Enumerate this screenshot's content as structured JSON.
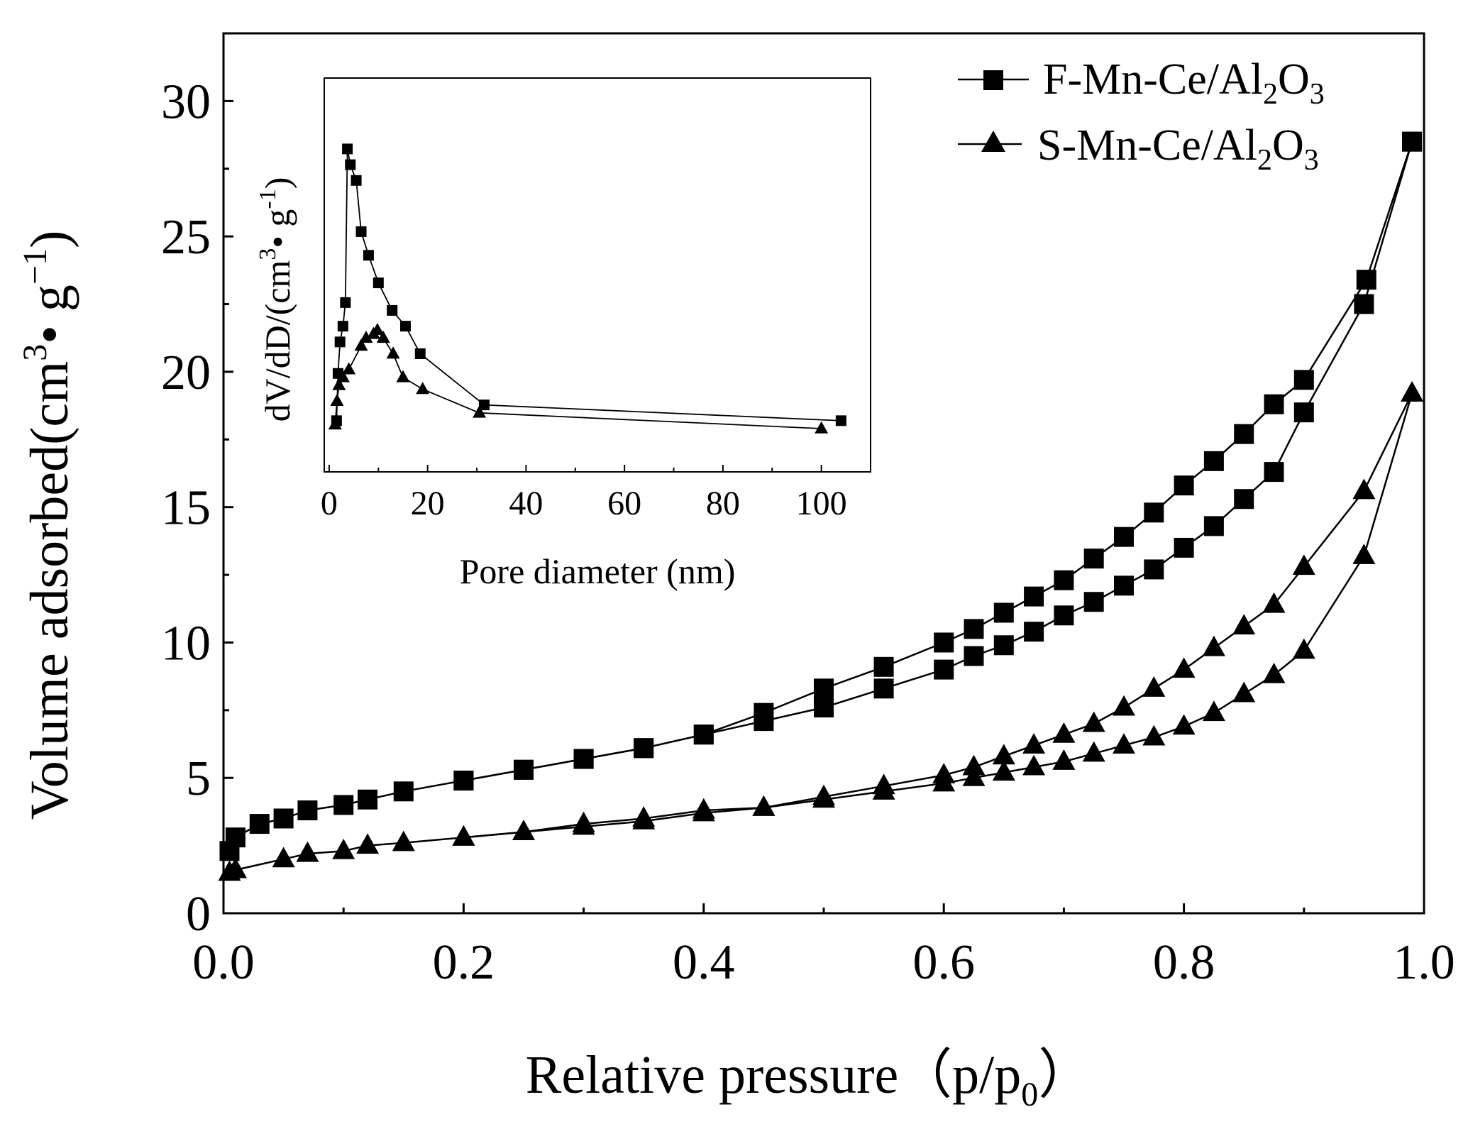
{
  "chart_data": [
    {
      "type": "line",
      "xlabel": "Relative pressure（p/p",
      "xlabel_sub": "0",
      "xlabel_end": "）",
      "ylabel": "Volume adsorbed(cm",
      "ylabel_sup1": "3",
      "ylabel_mid": "• g",
      "ylabel_sup2": "−1",
      "ylabel_end": ")",
      "xlim": [
        0,
        1.0
      ],
      "ylim": [
        0,
        32.5
      ],
      "xticks": [
        "0.0",
        "0.2",
        "0.4",
        "0.6",
        "0.8",
        "1.0"
      ],
      "yticks": [
        "0",
        "5",
        "10",
        "15",
        "20",
        "25",
        "30"
      ],
      "xtick_values": [
        0,
        0.2,
        0.4,
        0.6,
        0.8,
        1.0
      ],
      "ytick_values": [
        0,
        5,
        10,
        15,
        20,
        25,
        30
      ],
      "legend_position": "top-right",
      "series": [
        {
          "name_main": "F-Mn-Ce/Al",
          "name_sub1": "2",
          "name_mid": "O",
          "name_sub2": "3",
          "marker": "square",
          "adsorption": {
            "x": [
              0.005,
              0.01,
              0.03,
              0.05,
              0.07,
              0.1,
              0.12,
              0.15,
              0.2,
              0.25,
              0.3,
              0.35,
              0.4,
              0.45,
              0.5,
              0.55,
              0.6,
              0.625,
              0.65,
              0.675,
              0.7,
              0.725,
              0.75,
              0.775,
              0.8,
              0.825,
              0.85,
              0.875,
              0.9,
              0.95,
              0.99
            ],
            "y": [
              2.3,
              2.8,
              3.3,
              3.5,
              3.8,
              4.0,
              4.2,
              4.5,
              4.9,
              5.3,
              5.7,
              6.1,
              6.6,
              7.1,
              7.6,
              8.3,
              9.0,
              9.5,
              9.9,
              10.4,
              11.0,
              11.5,
              12.1,
              12.7,
              13.5,
              14.3,
              15.3,
              16.3,
              18.5,
              22.5,
              28.5
            ]
          },
          "desorption": {
            "x": [
              0.99,
              0.952,
              0.9,
              0.875,
              0.85,
              0.825,
              0.8,
              0.775,
              0.75,
              0.725,
              0.7,
              0.675,
              0.65,
              0.625,
              0.6,
              0.55,
              0.5,
              0.45,
              0.4,
              0.35,
              0.3,
              0.25,
              0.2
            ],
            "y": [
              28.5,
              23.4,
              19.7,
              18.8,
              17.7,
              16.7,
              15.8,
              14.8,
              13.9,
              13.1,
              12.3,
              11.7,
              11.1,
              10.5,
              10.0,
              9.1,
              8.3,
              7.4,
              6.6,
              6.1,
              5.7,
              5.3,
              4.9
            ]
          }
        },
        {
          "name_main": "S-Mn-Ce/Al",
          "name_sub1": "2",
          "name_mid": "O",
          "name_sub2": "3",
          "marker": "triangle",
          "adsorption": {
            "x": [
              0.005,
              0.01,
              0.05,
              0.07,
              0.1,
              0.12,
              0.15,
              0.2,
              0.25,
              0.3,
              0.35,
              0.4,
              0.45,
              0.5,
              0.55,
              0.6,
              0.625,
              0.65,
              0.675,
              0.7,
              0.725,
              0.75,
              0.775,
              0.8,
              0.825,
              0.85,
              0.875,
              0.9,
              0.95,
              0.99
            ],
            "y": [
              1.5,
              1.6,
              2.0,
              2.2,
              2.3,
              2.5,
              2.6,
              2.8,
              3.0,
              3.2,
              3.4,
              3.7,
              3.9,
              4.2,
              4.5,
              4.8,
              5.0,
              5.2,
              5.4,
              5.6,
              5.9,
              6.2,
              6.5,
              6.9,
              7.4,
              8.1,
              8.8,
              9.7,
              13.2,
              19.2
            ]
          },
          "desorption": {
            "x": [
              0.99,
              0.95,
              0.9,
              0.875,
              0.85,
              0.825,
              0.8,
              0.775,
              0.75,
              0.725,
              0.7,
              0.675,
              0.65,
              0.625,
              0.6,
              0.55,
              0.5,
              0.45,
              0.4,
              0.35,
              0.3,
              0.25,
              0.2
            ],
            "y": [
              19.2,
              15.6,
              12.8,
              11.4,
              10.6,
              9.8,
              9.0,
              8.3,
              7.6,
              7.0,
              6.6,
              6.2,
              5.8,
              5.4,
              5.1,
              4.7,
              4.3,
              3.9,
              3.8,
              3.5,
              3.3,
              3.0,
              2.8
            ]
          }
        }
      ]
    },
    {
      "type": "line",
      "xlabel": "Pore diameter (nm)",
      "ylabel": "dV/dD/(cm",
      "ylabel_sup1": "3",
      "ylabel_mid": "• g",
      "ylabel_sup2": "-1",
      "ylabel_end": ")",
      "xlim": [
        -1,
        110
      ],
      "ylim": [
        0,
        1
      ],
      "xticks": [
        "0",
        "20",
        "40",
        "60",
        "80",
        "100"
      ],
      "xtick_values": [
        0,
        20,
        40,
        60,
        80,
        100
      ],
      "series": [
        {
          "marker": "square",
          "x": [
            1.5,
            1.8,
            2.2,
            2.8,
            3.3,
            3.7,
            4.3,
            5.5,
            6.5,
            8.0,
            10.0,
            12.8,
            15.5,
            18.5,
            31.5,
            104.0
          ],
          "y": [
            0.13,
            0.25,
            0.33,
            0.37,
            0.43,
            0.82,
            0.78,
            0.74,
            0.61,
            0.55,
            0.48,
            0.41,
            0.37,
            0.3,
            0.17,
            0.13
          ]
        },
        {
          "marker": "triangle",
          "x": [
            1.2,
            1.6,
            2.0,
            2.8,
            4.0,
            6.5,
            7.5,
            9.0,
            9.8,
            11.0,
            13.0,
            15.0,
            19.0,
            30.5,
            100.0
          ],
          "y": [
            0.12,
            0.18,
            0.22,
            0.24,
            0.26,
            0.32,
            0.34,
            0.35,
            0.36,
            0.34,
            0.3,
            0.24,
            0.21,
            0.15,
            0.11
          ]
        }
      ]
    }
  ]
}
